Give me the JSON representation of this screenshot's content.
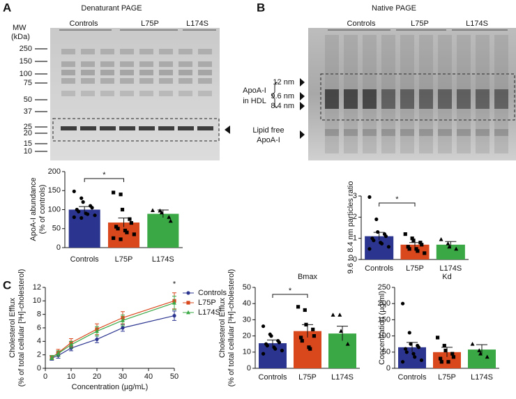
{
  "panel_labels": [
    "A",
    "B",
    "C"
  ],
  "blots": [
    {
      "title": "Denaturant PAGE",
      "mw_label": "MW",
      "mw_unit": "(kDa)",
      "mw_markers": [
        "250",
        "150",
        "100",
        "75",
        "50",
        "37",
        "25",
        "20",
        "15",
        "10"
      ],
      "groups": [
        "Controls",
        "L75P",
        "L174S"
      ]
    },
    {
      "title": "Native PAGE",
      "groups": [
        "Controls",
        "L75P",
        "L174S"
      ],
      "hdl_label": [
        "ApoA-I",
        "in HDL"
      ],
      "sizes": [
        "12 nm",
        "9.6 nm",
        "8.4 nm"
      ],
      "free_label": [
        "Lipid free",
        "ApoA-I"
      ]
    }
  ],
  "chart_data": [
    {
      "type": "bar",
      "ylabel": [
        "ApoA-I abundance",
        "(% of controls)"
      ],
      "categories": [
        "Controls",
        "L75P",
        "L174S"
      ],
      "values": [
        100,
        66,
        89
      ],
      "errors": [
        8,
        12,
        10
      ],
      "colors": [
        "#2b3590",
        "#d9471c",
        "#3aa845"
      ],
      "points": [
        [
          148,
          130,
          120,
          110,
          105,
          100,
          95,
          90,
          88,
          85,
          80,
          78
        ],
        [
          145,
          140,
          100,
          75,
          65,
          55,
          50,
          45,
          40,
          35,
          25,
          22
        ],
        [
          98,
          97,
          92,
          80,
          70
        ]
      ],
      "ylim": [
        0,
        200
      ],
      "yticks": [
        0,
        50,
        100,
        150,
        200
      ],
      "annotation": "*"
    },
    {
      "type": "bar",
      "ylabel": [
        "9.6 to 8.4 nm particles ratio"
      ],
      "categories": [
        "Controls",
        "L75P",
        "L174S"
      ],
      "values": [
        1.1,
        0.7,
        0.7
      ],
      "errors": [
        0.18,
        0.1,
        0.15
      ],
      "colors": [
        "#2b3590",
        "#d9471c",
        "#3aa845"
      ],
      "points": [
        [
          2.95,
          1.9,
          1.3,
          1.2,
          1.1,
          1.0,
          0.9,
          0.8,
          0.75,
          0.6,
          0.5
        ],
        [
          1.2,
          1.0,
          0.9,
          0.8,
          0.7,
          0.6,
          0.5,
          0.5,
          0.4,
          0.3
        ],
        [
          0.95,
          0.75,
          0.6,
          0.5
        ]
      ],
      "ylim": [
        0,
        3
      ],
      "yticks": [
        0,
        1,
        2,
        3
      ],
      "annotation": "*"
    },
    {
      "type": "line",
      "ylabel": [
        "Cholesterol Efflux",
        "(% of total cellular [³H]-cholesterol)"
      ],
      "xlabel": "Concentration (µg/mL)",
      "x": [
        2.5,
        5,
        10,
        20,
        30,
        50
      ],
      "series": [
        {
          "name": "Controls",
          "color": "#2b3590",
          "values": [
            1.5,
            1.9,
            3.0,
            4.3,
            6.0,
            7.8
          ],
          "errors": [
            0.3,
            0.4,
            0.4,
            0.5,
            0.5,
            0.7
          ]
        },
        {
          "name": "L75P",
          "color": "#d9471c",
          "values": [
            1.6,
            2.3,
            3.8,
            5.8,
            7.5,
            10.0
          ],
          "errors": [
            0.3,
            0.5,
            0.6,
            0.8,
            0.9,
            1.2
          ]
        },
        {
          "name": "L174S",
          "color": "#3aa845",
          "values": [
            1.6,
            2.2,
            3.5,
            5.5,
            7.1,
            9.7
          ],
          "errors": [
            0.3,
            0.4,
            0.5,
            0.7,
            0.8,
            1.0
          ]
        }
      ],
      "xlim": [
        0,
        50
      ],
      "xticks": [
        0,
        10,
        20,
        30,
        40,
        50
      ],
      "ylim": [
        0,
        12
      ],
      "yticks": [
        0,
        2,
        4,
        6,
        8,
        10,
        12
      ],
      "legend": "right",
      "annotation": "*"
    },
    {
      "type": "bar",
      "title": "Bmax",
      "ylabel": [
        "Cholesterol Efflux",
        "(% of total cellular [³H]-cholesterol)"
      ],
      "categories": [
        "Controls",
        "L75P",
        "L174S"
      ],
      "values": [
        15.5,
        23,
        21.5
      ],
      "errors": [
        2,
        4,
        4.5
      ],
      "colors": [
        "#2b3590",
        "#d9471c",
        "#3aa845"
      ],
      "points": [
        [
          26,
          21,
          20,
          17,
          16,
          15,
          14,
          13,
          12,
          11,
          9
        ],
        [
          38,
          36,
          27,
          24,
          20,
          19,
          17,
          13,
          12
        ],
        [
          33,
          33,
          23,
          15
        ]
      ],
      "ylim": [
        0,
        50
      ],
      "yticks": [
        0,
        10,
        20,
        30,
        40,
        50
      ],
      "annotation": "*"
    },
    {
      "type": "bar",
      "title": "Kd",
      "ylabel": [
        "Concentration (µg/ml)"
      ],
      "categories": [
        "Controls",
        "L75P",
        "L174S"
      ],
      "values": [
        65,
        50,
        58
      ],
      "errors": [
        15,
        15,
        15
      ],
      "colors": [
        "#2b3590",
        "#d9471c",
        "#3aa845"
      ],
      "points": [
        [
          200,
          110,
          75,
          70,
          65,
          60,
          50,
          45,
          35,
          25,
          20
        ],
        [
          95,
          70,
          55,
          45,
          35,
          30,
          20,
          20
        ],
        [
          75,
          55,
          45,
          35
        ]
      ],
      "ylim": [
        0,
        250
      ],
      "yticks": [
        0,
        50,
        100,
        150,
        200,
        250
      ]
    }
  ]
}
